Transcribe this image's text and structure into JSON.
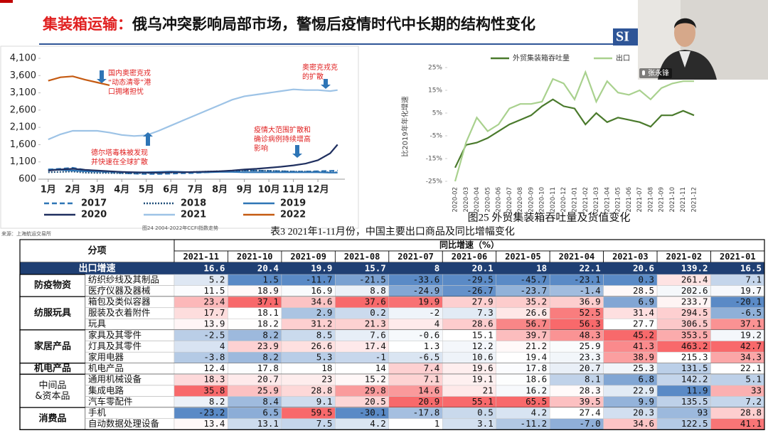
{
  "slide": {
    "title_highlight": "集装箱运输：",
    "title_rest": "俄乌冲突影响局部市场，警惕后疫情时代中长期的结构性变化",
    "logo": "SI"
  },
  "webcam": {
    "name": "张永锋"
  },
  "left_chart": {
    "type": "line",
    "x": [
      1,
      1.5,
      2,
      2.5,
      3,
      3.5,
      4,
      4.5,
      5,
      5.5,
      6,
      6.5,
      7,
      7.5,
      8,
      8.5,
      9,
      9.5,
      10,
      10.5,
      11,
      11.5,
      12,
      12.5,
      12.8
    ],
    "xlim": [
      0.6,
      13.1
    ],
    "xticks": [
      {
        "value": 1,
        "label": "1月"
      },
      {
        "value": 2,
        "label": "2月"
      },
      {
        "value": 3,
        "label": "3月"
      },
      {
        "value": 4,
        "label": "4月"
      },
      {
        "value": 5,
        "label": "5月"
      },
      {
        "value": 6,
        "label": "6月"
      },
      {
        "value": 7,
        "label": "7月"
      },
      {
        "value": 8,
        "label": "8月"
      },
      {
        "value": 9,
        "label": "9月"
      },
      {
        "value": 10,
        "label": "10月"
      },
      {
        "value": 11,
        "label": "11月"
      },
      {
        "value": 12,
        "label": "12月"
      }
    ],
    "ylim": [
      600,
      4100
    ],
    "yticks": [
      600,
      {
        "value": 1100,
        "label": "1,100"
      },
      {
        "value": 1600,
        "label": "1,600"
      },
      {
        "value": 2100,
        "label": "2,100"
      },
      {
        "value": 2600,
        "label": "2,600"
      },
      {
        "value": 3100,
        "label": "3,100"
      },
      {
        "value": 3600,
        "label": "3,600"
      },
      {
        "value": 4100,
        "label": "4,100"
      }
    ],
    "series": [
      {
        "name": "2017",
        "color": "#2e75b6",
        "dash": "7,4",
        "values": [
          880,
          900,
          930,
          870,
          820,
          800,
          780,
          760,
          750,
          750,
          760,
          770,
          780,
          800,
          820,
          830,
          850,
          850,
          840,
          830,
          820,
          820,
          830,
          840,
          850
        ]
      },
      {
        "name": "2018",
        "color": "#1f4e79",
        "dash": "2,2",
        "values": [
          800,
          810,
          820,
          790,
          780,
          780,
          770,
          770,
          780,
          780,
          790,
          800,
          810,
          820,
          830,
          840,
          850,
          850,
          840,
          830,
          820,
          820,
          810,
          800,
          800
        ]
      },
      {
        "name": "2019",
        "color": "#2e75b6",
        "dash": "none",
        "values": [
          880,
          870,
          850,
          830,
          820,
          820,
          810,
          800,
          800,
          810,
          820,
          810,
          800,
          800,
          810,
          810,
          800,
          800,
          800,
          800,
          800,
          800,
          800,
          790,
          790
        ]
      },
      {
        "name": "2020",
        "color": "#1f2f5f",
        "dash": "none",
        "values": [
          850,
          880,
          900,
          870,
          850,
          830,
          810,
          800,
          790,
          790,
          800,
          800,
          810,
          820,
          830,
          850,
          880,
          900,
          930,
          960,
          1000,
          1050,
          1150,
          1350,
          1600
        ]
      },
      {
        "name": "2021",
        "color": "#9dc3e6",
        "dash": "none",
        "values": [
          1750,
          1900,
          2000,
          2000,
          2000,
          1950,
          1880,
          1850,
          1870,
          2000,
          2150,
          2300,
          2450,
          2600,
          2750,
          2900,
          3000,
          3050,
          3100,
          3150,
          3200,
          3180,
          3180,
          3150,
          3180
        ]
      },
      {
        "name": "2022",
        "color": "#c55a11",
        "dash": "none",
        "values": [
          3450,
          3550,
          3580,
          3480,
          3400,
          3320,
          null,
          null,
          null,
          null,
          null,
          null,
          null,
          null,
          null,
          null,
          null,
          null,
          null,
          null,
          null,
          null,
          null,
          null,
          null
        ]
      }
    ],
    "annotations": [
      [
        "国内奥密克戎",
        "“动态清零”港",
        "口拥堵担忧"
      ],
      [
        "奥密克戎克",
        "的扩散"
      ],
      [
        "疫情大范围扩散和",
        "确诊病例持续增高",
        "影响"
      ],
      [
        "德尔塔毒株被发现",
        "并快速在全球扩散"
      ]
    ],
    "caption": "图24 2004-2022年CCFI指数走势",
    "source": "来源：上海航运交易所"
  },
  "right_chart": {
    "type": "line",
    "categories": [
      "2020-02",
      "2020-03",
      "2020-04",
      "2020-05",
      "2020-06",
      "2020-07",
      "2020-08",
      "2020-09",
      "2020-10",
      "2020-11",
      "2020-12",
      "2021-01",
      "2021-02",
      "2021-03",
      "2021-04",
      "2021-05",
      "2021-06",
      "2021-07",
      "2021-08",
      "2021-09",
      "2021-10",
      "2021-11",
      "2021-12"
    ],
    "ylabel": "比2019年年化增速",
    "ylim": [
      -27,
      30
    ],
    "yticks": [
      {
        "value": 25,
        "label": "25%"
      },
      {
        "value": 15,
        "label": "15%"
      },
      {
        "value": 5,
        "label": "5%"
      },
      {
        "value": -5,
        "label": "-5%"
      },
      {
        "value": -15,
        "label": "-15%"
      },
      {
        "value": -25,
        "label": "-25%"
      }
    ],
    "series": [
      {
        "name": "外贸集装箱吞吐量",
        "color": "#4a7a2c",
        "values": [
          -19,
          -9,
          -8,
          -6,
          -3,
          0,
          2,
          4,
          8,
          11,
          8,
          7,
          0,
          5,
          1,
          3,
          2,
          1,
          -1,
          4,
          4,
          6,
          4
        ]
      },
      {
        "name": "出口",
        "color": "#a9d18e",
        "values": [
          -25,
          -8,
          3,
          -3,
          0,
          7,
          9,
          9,
          10,
          20,
          18,
          11,
          23,
          10,
          19,
          14,
          13,
          15,
          11,
          16,
          18,
          19,
          19
        ]
      }
    ],
    "caption": "图25 外贸集装箱吞吐量及货值变化"
  },
  "table": {
    "title": "表3 2021年1-11月份，中国主要出口商品及同比增幅变化",
    "corner": "分项",
    "span_header": "同比增速（%）",
    "columns": [
      "2021-11",
      "2021-10",
      "2021-09",
      "2021-08",
      "2021-07",
      "2021-06",
      "2021-05",
      "2021-04",
      "2021-03",
      "2021-02",
      "2021-01"
    ],
    "total": {
      "name": "出口增速",
      "values": [
        "16.6",
        "20.4",
        "19.9",
        "15.7",
        "8",
        "20.1",
        "18",
        "22.1",
        "20.6",
        "139.2",
        "16.5"
      ]
    },
    "groups": [
      {
        "name": [
          "防疫物资"
        ],
        "rows": [
          {
            "name": "纺织纱线及其制品",
            "values": [
              "5.2",
              "1.5",
              "-11.7",
              "-21.5",
              "-33.6",
              "-29.5",
              "-45.7",
              "-23.1",
              "0.3",
              "261.4",
              "7.1"
            ]
          },
          {
            "name": "医疗仪器及器械",
            "values": [
              "11.5",
              "18.9",
              "16.9",
              "8.8",
              "-24.9",
              "-26.7",
              "-23.7",
              "-1.4",
              "28.5",
              "202.6",
              "19.7"
            ]
          }
        ]
      },
      {
        "name": [
          "纺服玩具"
        ],
        "rows": [
          {
            "name": "箱包及类似容器",
            "values": [
              "23.4",
              "37.1",
              "34.6",
              "37.6",
              "19.9",
              "27.9",
              "35.2",
              "36.9",
              "6.9",
              "233.7",
              "-20.1"
            ]
          },
          {
            "name": "服装及衣着附件",
            "values": [
              "17.7",
              "18.1",
              "2.9",
              "0.2",
              "-2",
              "7.3",
              "26.6",
              "52.5",
              "31.4",
              "294.5",
              "-6.5"
            ]
          },
          {
            "name": "玩具",
            "values": [
              "13.9",
              "18.2",
              "31.2",
              "21.3",
              "4",
              "28.6",
              "56.7",
              "56.3",
              "27.7",
              "306.5",
              "37.1"
            ]
          }
        ]
      },
      {
        "name": [
          "家居产品"
        ],
        "rows": [
          {
            "name": "家具及其零件",
            "values": [
              "-2.5",
              "8.2",
              "8.5",
              "7.6",
              "-0.6",
              "15.1",
              "39.7",
              "48.3",
              "45.2",
              "353.5",
              "19.2"
            ]
          },
          {
            "name": "灯具及其零件",
            "values": [
              "4",
              "23.9",
              "26.6",
              "17.4",
              "1.3",
              "12.2",
              "21.2",
              "25.9",
              "41.3",
              "463.2",
              "42.7"
            ]
          },
          {
            "name": "家用电器",
            "values": [
              "-3.8",
              "8.2",
              "5.3",
              "-1",
              "-6.5",
              "10.6",
              "19.4",
              "23.3",
              "38.9",
              "215.3",
              "34.3"
            ]
          }
        ]
      },
      {
        "name": [
          "机电产品"
        ],
        "rows": [
          {
            "name": "机电产品",
            "values": [
              "12.4",
              "17.8",
              "18",
              "14",
              "7.4",
              "19.6",
              "17.8",
              "20.7",
              "25.3",
              "131.5",
              "22.1"
            ]
          }
        ]
      },
      {
        "name": [
          "中间品",
          "&资本品"
        ],
        "rows": [
          {
            "name": "通用机械设备",
            "values": [
              "18.3",
              "20.7",
              "23",
              "15.2",
              "7.1",
              "19.1",
              "18.6",
              "8.1",
              "6.8",
              "142.2",
              "5.1"
            ]
          },
          {
            "name": "集成电路",
            "values": [
              "35.8",
              "25.9",
              "28.8",
              "29.8",
              "14.6",
              "21",
              "16.2",
              "28.3",
              "22.9",
              "11.9",
              "33"
            ]
          },
          {
            "name": "汽车零配件",
            "values": [
              "8.2",
              "8.4",
              "9.1",
              "20.5",
              "20.9",
              "55.1",
              "65.5",
              "39.5",
              "9.9",
              "135.5",
              "7.2"
            ]
          }
        ]
      },
      {
        "name": [
          "消费品"
        ],
        "rows": [
          {
            "name": "手机",
            "values": [
              "-23.2",
              "6.5",
              "59.5",
              "-30.1",
              "-17.8",
              "0.5",
              "4.2",
              "27.4",
              "20.3",
              "93",
              "28.8"
            ]
          },
          {
            "name": "自动数据处理设备",
            "values": [
              "13.4",
              "13.1",
              "7.5",
              "4.2",
              "1",
              "3.1",
              "-11.2",
              "-7.0",
              "34.6",
              "122.5",
              "41.1"
            ]
          }
        ]
      }
    ]
  }
}
